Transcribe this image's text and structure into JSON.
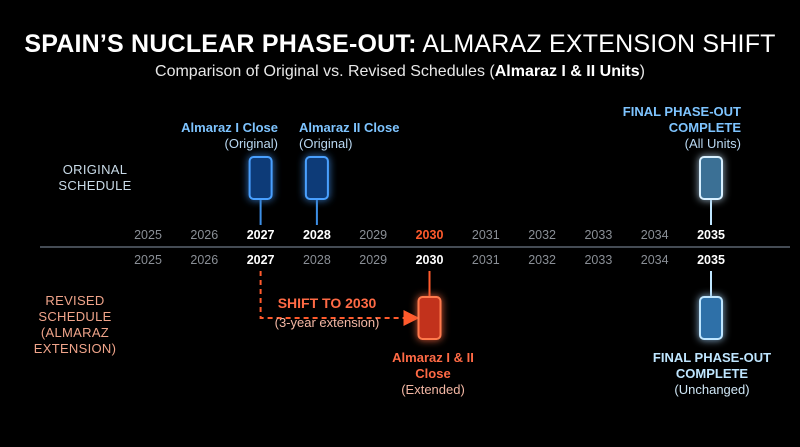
{
  "title": {
    "bold": "SPAIN’S NUCLEAR PHASE-OUT:",
    "normal": " ALMARAZ EXTENSION SHIFT"
  },
  "subtitle": {
    "prefix": "Comparison of Original vs. Revised Schedules (",
    "bold": "Almaraz I & II Units",
    "suffix": ")"
  },
  "rows": {
    "original": [
      "ORIGINAL",
      "SCHEDULE"
    ],
    "revised": [
      "REVISED",
      "SCHEDULE",
      "(ALMARAZ",
      "EXTENSION)"
    ]
  },
  "years": [
    "2025",
    "2026",
    "2027",
    "2028",
    "2029",
    "2030",
    "2031",
    "2032",
    "2033",
    "2034",
    "2035"
  ],
  "highlight_years_upper": [
    "2027",
    "2028",
    "2030",
    "2035"
  ],
  "highlight_years_lower": [
    "2027",
    "2030",
    "2035"
  ],
  "events": {
    "almaraz1_original": {
      "year": 2027,
      "title": "Almaraz I Close",
      "note": "(Original)"
    },
    "almaraz2_original": {
      "year": 2028,
      "title": "Almaraz II Close",
      "note": "(Original)"
    },
    "final_original": {
      "year": 2035,
      "title_lines": [
        "FINAL PHASE-OUT",
        "COMPLETE"
      ],
      "note": "(All Units)"
    },
    "shift": {
      "from_year": 2027,
      "to_year": 2030,
      "title": "SHIFT TO 2030",
      "note": "(3-year extension)"
    },
    "almaraz_extended": {
      "year": 2030,
      "title_lines": [
        "Almaraz I & II",
        "Close"
      ],
      "note": "(Extended)"
    },
    "final_revised": {
      "year": 2035,
      "title_lines": [
        "FINAL PHASE-OUT",
        "COMPLETE"
      ],
      "note": "(Unchanged)"
    }
  },
  "colors": {
    "background": "#000000",
    "blue": "#3d8fe6",
    "blue_text": "#7ec4ff",
    "red": "#ff5a2c",
    "light_blue": "#bfe6ff",
    "axis": "#5a6470"
  }
}
